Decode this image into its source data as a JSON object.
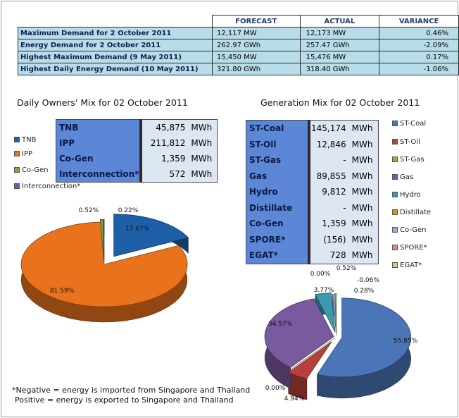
{
  "summary": {
    "headers": [
      "",
      "FORECAST",
      "ACTUAL",
      "VARIANCE"
    ],
    "rows": [
      {
        "label": "Maximum Demand for 2 October 2011",
        "forecast": "12,117  MW",
        "actual": "12,173  MW",
        "variance": "0.46%"
      },
      {
        "label": "Energy Demand for 2 October 2011",
        "forecast": "262.97  GWh",
        "actual": "257.47  GWh",
        "variance": "-2.09%"
      },
      {
        "label": "Highest Maximum Demand (9 May 2011)",
        "forecast": "15,450  MW",
        "actual": "15,476  MW",
        "variance": "0.17%"
      },
      {
        "label": "Highest Daily Energy Demand (10 May 2011)",
        "forecast": "321.80  GWh",
        "actual": "318.40  GWh",
        "variance": "-1.06%"
      }
    ]
  },
  "owners_table": {
    "rows": [
      {
        "label": "TNB",
        "value": "45,875",
        "unit": "MWh"
      },
      {
        "label": "IPP",
        "value": "211,812",
        "unit": "MWh"
      },
      {
        "label": "Co-Gen",
        "value": "1,359",
        "unit": "MWh"
      },
      {
        "label": "Interconnection*",
        "value": "572",
        "unit": "MWh"
      }
    ]
  },
  "genmix_table": {
    "rows": [
      {
        "label": "ST-Coal",
        "value": "145,174",
        "unit": "MWh"
      },
      {
        "label": "ST-Oil",
        "value": "12,846",
        "unit": "MWh"
      },
      {
        "label": "ST-Gas",
        "value": "-",
        "unit": "MWh"
      },
      {
        "label": "Gas",
        "value": "89,855",
        "unit": "MWh"
      },
      {
        "label": "Hydro",
        "value": "9,812",
        "unit": "MWh"
      },
      {
        "label": "Distillate",
        "value": "-",
        "unit": "MWh"
      },
      {
        "label": "Co-Gen",
        "value": "1,359",
        "unit": "MWh"
      },
      {
        "label": "SPORE*",
        "value": "(156)",
        "unit": "MWh"
      },
      {
        "label": "EGAT*",
        "value": "728",
        "unit": "MWh"
      }
    ]
  },
  "footnote": {
    "line1": "*Negative = energy is imported from Singapore and Thailand",
    "line2": "Positive = energy is exported to Singapore and Thailand"
  },
  "chart_data": [
    {
      "type": "pie",
      "title": "Daily Owners' Mix for 02 October 2011",
      "legend_position": "left",
      "categories": [
        "TNB",
        "IPP",
        "Co-Gen",
        "Interconnection*"
      ],
      "values": [
        17.67,
        81.59,
        0.52,
        0.22
      ],
      "labels": [
        "17.67%",
        "81.59%",
        "0.52%",
        "0.22%"
      ],
      "colors": [
        "#1f5fa8",
        "#e8731c",
        "#7aa83a",
        "#7c59a6"
      ]
    },
    {
      "type": "pie",
      "title": "Generation Mix for 02 October 2011",
      "legend_position": "right",
      "categories": [
        "ST-Coal",
        "ST-Oil",
        "ST-Gas",
        "Gas",
        "Hydro",
        "Distillate",
        "Co-Gen",
        "SPORE*",
        "EGAT*"
      ],
      "values": [
        55.85,
        4.94,
        0.0,
        34.57,
        3.77,
        0.0,
        0.52,
        -0.06,
        0.28
      ],
      "labels": [
        "55.85%",
        "4.94%",
        "0.00%",
        "34.57%",
        "3.77%",
        "0.00%",
        "0.52%",
        "-0.06%",
        "0.28%"
      ],
      "colors": [
        "#4a76b8",
        "#b8403a",
        "#93b04a",
        "#7a5a9e",
        "#3a9ab0",
        "#e8892c",
        "#8fb0d8",
        "#d88a86",
        "#c0d490"
      ]
    }
  ]
}
